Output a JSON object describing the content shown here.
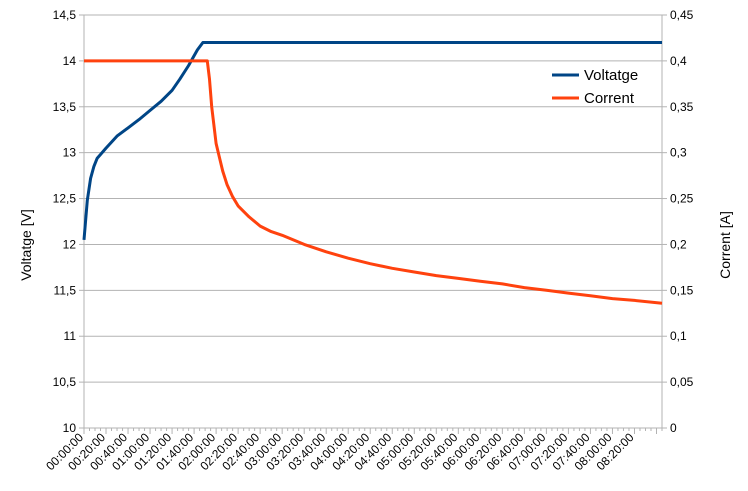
{
  "chart_data": {
    "type": "line",
    "title": "",
    "xlabel": "",
    "ylabel": "Voltatge [V]",
    "y2label": "Corrent [A]",
    "x_ticks": [
      "00:00:00",
      "00:20:00",
      "00:40:00",
      "01:00:00",
      "01:20:00",
      "01:40:00",
      "02:00:00",
      "02:20:00",
      "02:40:00",
      "03:00:00",
      "03:20:00",
      "03:40:00",
      "04:00:00",
      "04:20:00",
      "04:40:00",
      "05:00:00",
      "05:20:00",
      "05:40:00",
      "06:00:00",
      "06:20:00",
      "06:40:00",
      "07:00:00",
      "07:20:00",
      "07:40:00",
      "08:00:00",
      "08:20:00"
    ],
    "xlim_minutes": [
      0,
      525
    ],
    "ylim": [
      10,
      14.5
    ],
    "y_ticks": [
      "10",
      "10,5",
      "11",
      "11,5",
      "12",
      "12,5",
      "13",
      "13,5",
      "14",
      "14,5"
    ],
    "y2lim": [
      0,
      0.45
    ],
    "y2_ticks": [
      "0",
      "0,05",
      "0,1",
      "0,15",
      "0,2",
      "0,25",
      "0,3",
      "0,35",
      "0,4",
      "0,45"
    ],
    "grid": true,
    "legend_position": "top-right",
    "series": [
      {
        "name": "Voltatge",
        "axis": "left",
        "color": "#004586",
        "x_minutes": [
          0,
          3,
          6,
          9,
          12,
          15,
          20,
          30,
          40,
          50,
          60,
          70,
          80,
          87,
          95,
          103,
          108,
          112,
          525
        ],
        "values": [
          12.05,
          12.48,
          12.72,
          12.85,
          12.94,
          12.98,
          13.05,
          13.18,
          13.27,
          13.36,
          13.46,
          13.56,
          13.68,
          13.8,
          13.95,
          14.12,
          14.2,
          14.2,
          14.2
        ]
      },
      {
        "name": "Corrent",
        "axis": "right",
        "color": "#ff420e",
        "x_minutes": [
          0,
          112,
          114,
          116,
          118,
          120,
          123,
          126,
          130,
          135,
          140,
          150,
          160,
          170,
          180,
          200,
          220,
          240,
          260,
          280,
          300,
          320,
          340,
          360,
          380,
          400,
          420,
          440,
          460,
          480,
          500,
          525
        ],
        "values": [
          0.4,
          0.4,
          0.38,
          0.35,
          0.33,
          0.31,
          0.295,
          0.28,
          0.265,
          0.252,
          0.242,
          0.23,
          0.22,
          0.214,
          0.21,
          0.2,
          0.192,
          0.185,
          0.179,
          0.174,
          0.17,
          0.166,
          0.163,
          0.16,
          0.157,
          0.153,
          0.15,
          0.147,
          0.144,
          0.141,
          0.139,
          0.136
        ]
      }
    ]
  }
}
